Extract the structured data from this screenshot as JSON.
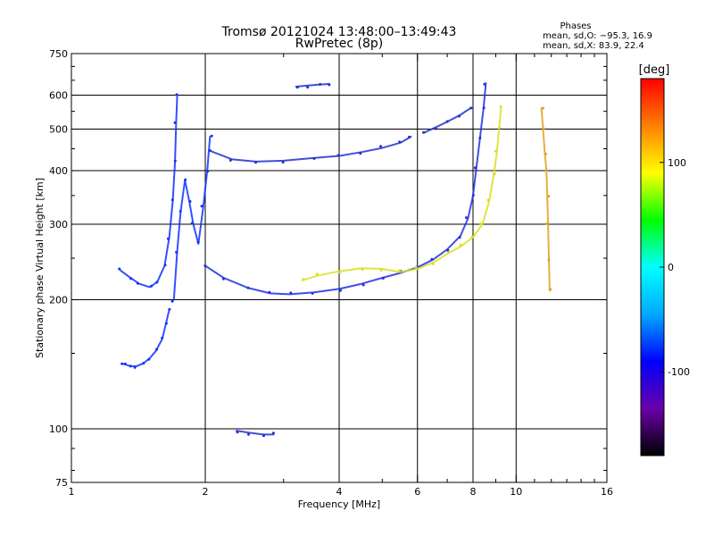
{
  "chart_data": {
    "type": "scatter",
    "title": "Tromsø 20121024 13:48:00–13:49:43",
    "subtitle": "RwPretec (8p)",
    "xlabel": "Frequency [MHz]",
    "ylabel": "Stationary phase Virtual Height [km]",
    "x_scale": "log",
    "y_scale": "log",
    "xlim": [
      1,
      16
    ],
    "ylim": [
      75,
      750
    ],
    "x_ticks": [
      1,
      2,
      4,
      6,
      8,
      10,
      16
    ],
    "y_ticks": [
      75,
      100,
      200,
      300,
      400,
      500,
      600,
      750
    ],
    "x_gridlines": [
      2,
      4,
      6,
      8,
      10
    ],
    "y_gridlines": [
      100,
      200,
      300,
      400,
      500,
      600
    ],
    "grid": true,
    "phase_stats": {
      "heading": "Phases",
      "line_o": "mean, sd,O: −95.3, 16.9",
      "line_x": "mean, sd,X:  83.9, 22.4"
    },
    "colorbar": {
      "label": "[deg]",
      "range": [
        -180,
        180
      ],
      "tick_values": [
        100,
        0,
        -100
      ],
      "tick_labels": [
        "100",
        "0",
        "-100"
      ],
      "stops": [
        "#000000",
        "#6a00a8",
        "#0000ff",
        "#00aaff",
        "#00ffff",
        "#00ff00",
        "#ffff00",
        "#ff8000",
        "#ff0000"
      ]
    },
    "series": [
      {
        "description": "low ordinary trace",
        "color": "#1030ff",
        "segments": [
          [
            [
              1.3,
              142
            ],
            [
              1.33,
              141
            ],
            [
              1.36,
              140
            ],
            [
              1.4,
              140
            ],
            [
              1.45,
              142
            ],
            [
              1.5,
              146
            ],
            [
              1.55,
              152
            ],
            [
              1.6,
              162
            ],
            [
              1.63,
              175
            ],
            [
              1.66,
              190
            ]
          ]
        ]
      },
      {
        "description": "left E-region spike",
        "color": "#1030ff",
        "segments": [
          [
            [
              1.29,
              234
            ],
            [
              1.35,
              226
            ],
            [
              1.42,
              218
            ],
            [
              1.5,
              214
            ],
            [
              1.56,
              220
            ],
            [
              1.62,
              240
            ],
            [
              1.66,
              280
            ],
            [
              1.69,
              340
            ],
            [
              1.71,
              420
            ],
            [
              1.72,
              520
            ],
            [
              1.73,
              600
            ]
          ],
          [
            [
              1.7,
              200
            ],
            [
              1.73,
              260
            ],
            [
              1.76,
              320
            ],
            [
              1.8,
              380
            ],
            [
              1.84,
              340
            ],
            [
              1.88,
              300
            ],
            [
              1.93,
              270
            ],
            [
              1.98,
              330
            ],
            [
              2.02,
              400
            ],
            [
              2.05,
              480
            ]
          ]
        ]
      },
      {
        "description": "F-region ordinary trace",
        "color": "#2030e0",
        "segments": [
          [
            [
              2.0,
              240
            ],
            [
              2.2,
              225
            ],
            [
              2.5,
              213
            ],
            [
              2.8,
              207
            ],
            [
              3.1,
              206
            ],
            [
              3.5,
              208
            ],
            [
              4.0,
              212
            ],
            [
              4.5,
              218
            ],
            [
              5.0,
              225
            ],
            [
              5.5,
              231
            ],
            [
              6.0,
              238
            ],
            [
              6.5,
              248
            ],
            [
              7.0,
              262
            ],
            [
              7.5,
              282
            ],
            [
              7.8,
              310
            ],
            [
              8.0,
              350
            ],
            [
              8.15,
              410
            ],
            [
              8.3,
              480
            ],
            [
              8.45,
              560
            ],
            [
              8.55,
              640
            ]
          ]
        ]
      },
      {
        "description": "F-region extraordinary trace",
        "color": "#d8e020",
        "segments": [
          [
            [
              3.3,
              222
            ],
            [
              3.6,
              228
            ],
            [
              4.0,
              233
            ],
            [
              4.5,
              237
            ],
            [
              5.0,
              236
            ],
            [
              5.5,
              232
            ],
            [
              6.0,
              236
            ],
            [
              6.5,
              244
            ],
            [
              7.0,
              256
            ],
            [
              7.5,
              266
            ],
            [
              8.0,
              280
            ],
            [
              8.4,
              300
            ],
            [
              8.7,
              340
            ],
            [
              8.9,
              390
            ],
            [
              9.05,
              440
            ],
            [
              9.15,
              500
            ],
            [
              9.25,
              560
            ]
          ]
        ]
      },
      {
        "description": "upper multiple-hop trace",
        "color": "#2030d0",
        "segments": [
          [
            [
              2.05,
              445
            ],
            [
              2.3,
              425
            ],
            [
              2.6,
              420
            ],
            [
              3.0,
              422
            ],
            [
              3.5,
              428
            ],
            [
              4.0,
              433
            ],
            [
              4.5,
              442
            ],
            [
              5.0,
              452
            ],
            [
              5.5,
              465
            ],
            [
              5.8,
              480
            ]
          ],
          [
            [
              6.2,
              490
            ],
            [
              6.6,
              505
            ],
            [
              7.0,
              520
            ],
            [
              7.5,
              540
            ],
            [
              7.9,
              560
            ]
          ]
        ]
      },
      {
        "description": "short top segment",
        "color": "#2030d0",
        "segments": [
          [
            [
              3.2,
              628
            ],
            [
              3.4,
              632
            ],
            [
              3.6,
              635
            ],
            [
              3.8,
              637
            ]
          ]
        ]
      },
      {
        "description": "bottom trace",
        "color": "#2030d0",
        "segments": [
          [
            [
              2.35,
              99
            ],
            [
              2.5,
              98
            ],
            [
              2.7,
              97
            ],
            [
              2.85,
              97
            ]
          ]
        ]
      },
      {
        "description": "column near 11.5 MHz",
        "color": "#e0a020",
        "segments": [
          [
            [
              11.4,
              560
            ],
            [
              11.5,
              500
            ],
            [
              11.6,
              440
            ],
            [
              11.7,
              400
            ],
            [
              11.75,
              350
            ],
            [
              11.8,
              300
            ],
            [
              11.85,
              250
            ],
            [
              11.9,
              210
            ]
          ]
        ]
      }
    ]
  }
}
